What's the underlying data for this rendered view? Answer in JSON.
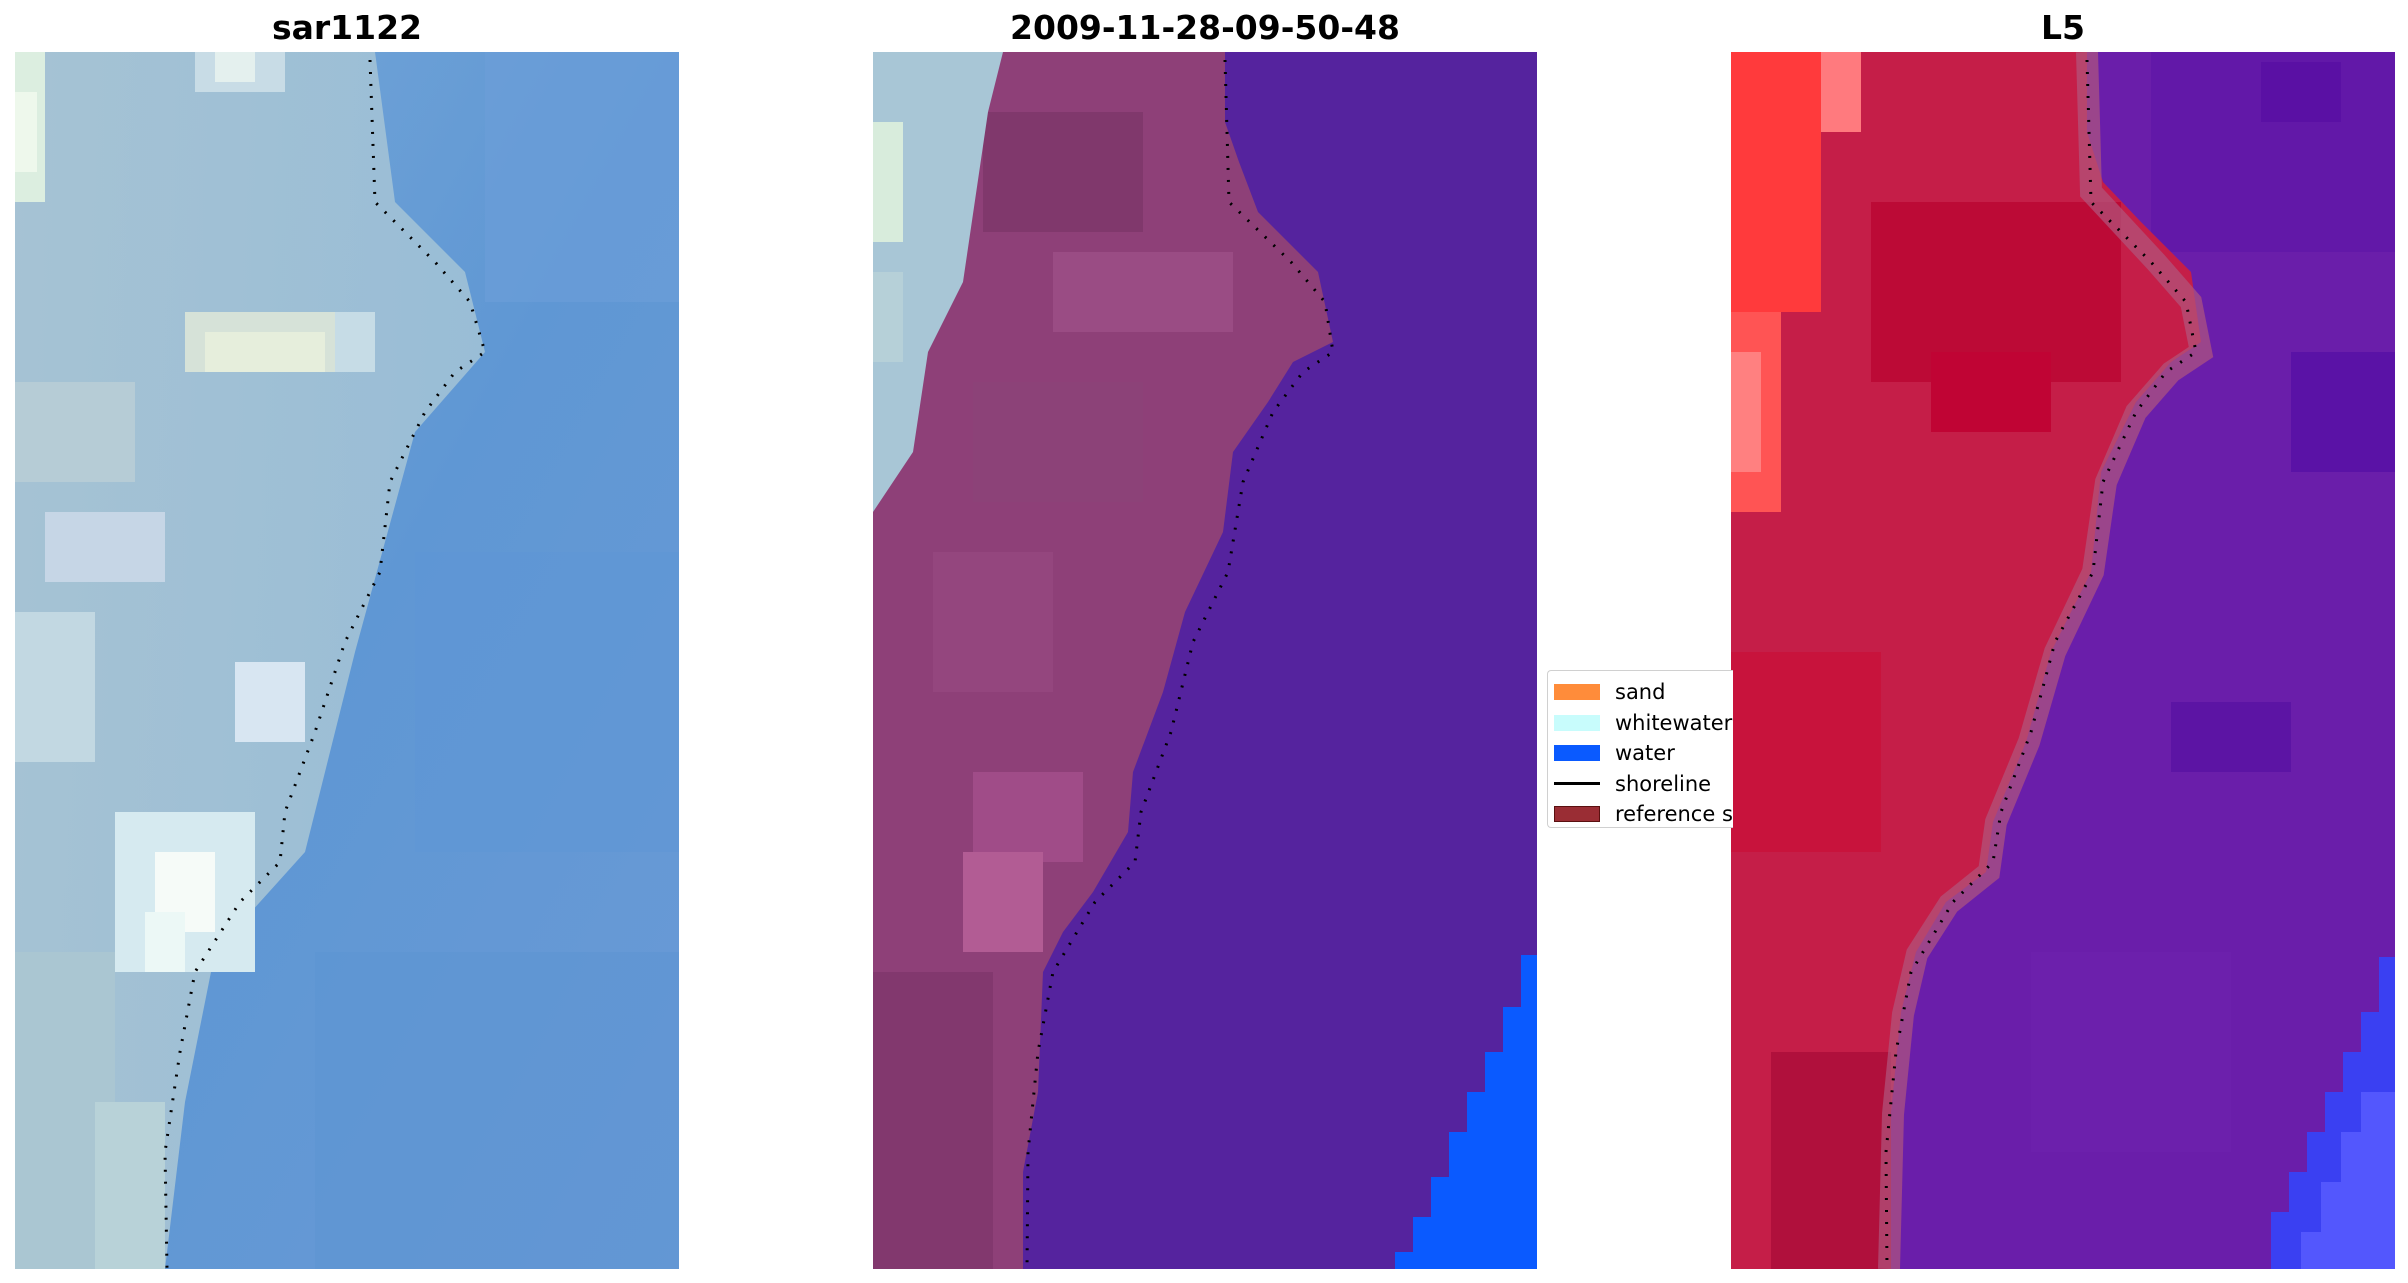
{
  "panels": [
    {
      "title": "sar1122"
    },
    {
      "title": "2009-11-28-09-50-48"
    },
    {
      "title": "L5"
    }
  ],
  "legend": {
    "items": [
      {
        "label": "sand",
        "color": "#ff8c3a"
      },
      {
        "label": "whitewater",
        "color": "#c8fcfc"
      },
      {
        "label": "water",
        "color": "#0a5aff"
      },
      {
        "label": "shoreline",
        "color": "#000000",
        "type": "line"
      },
      {
        "label": "reference s",
        "color": "#9a2d34"
      }
    ]
  },
  "colors": {
    "rgb_water": "#6a9ed6",
    "rgb_shore": "#c4dce8",
    "classified_water": "#55239e",
    "classified_land": "#8e4078",
    "classified_sea": "#0a5aff",
    "mndwi_land": "#c51e48",
    "mndwi_water": "#6a1eaa"
  }
}
